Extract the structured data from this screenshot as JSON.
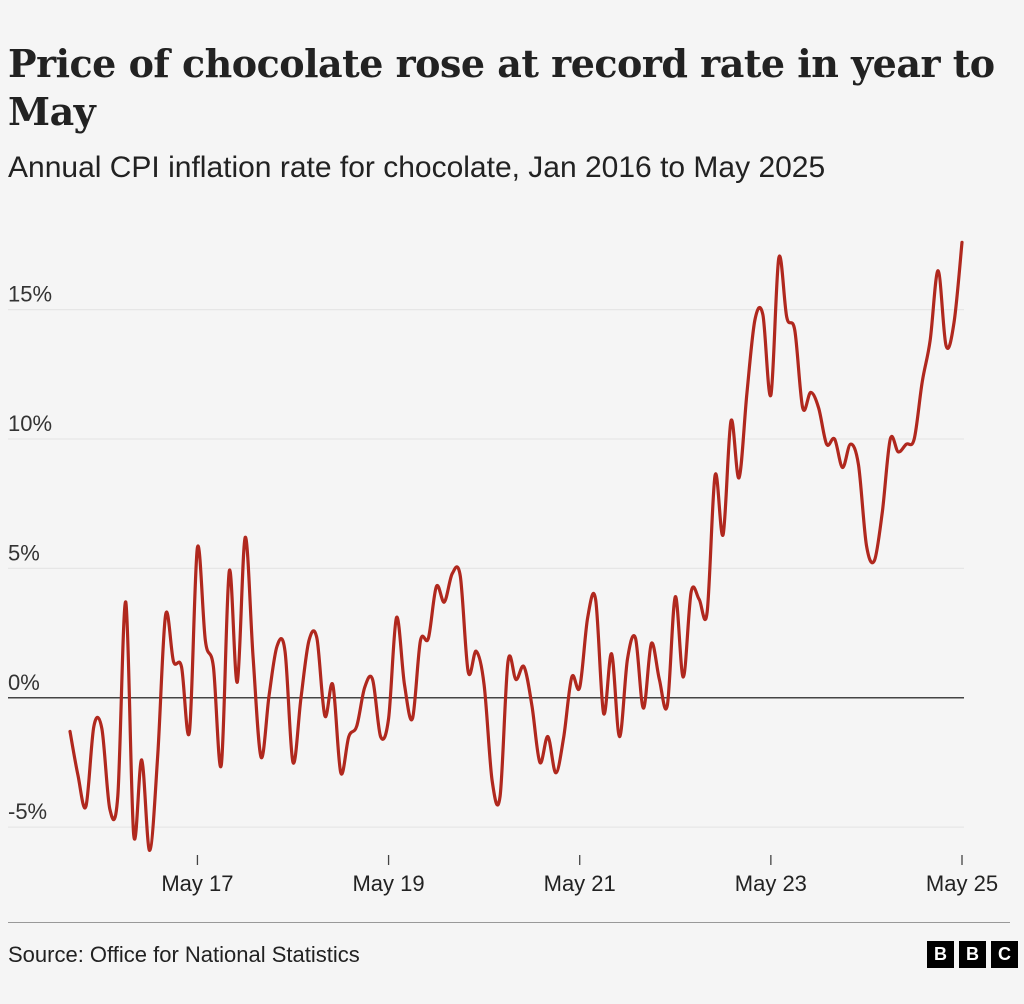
{
  "title": "Price of chocolate rose at record rate in year to May",
  "subtitle": "Annual CPI inflation rate for chocolate, Jan 2016 to May 2025",
  "source": "Source: Office for National Statistics",
  "logo": [
    "B",
    "B",
    "C"
  ],
  "colors": {
    "line": "#b0281e",
    "grid": "#e6e6e6",
    "zero": "#444444",
    "background": "#f5f5f5"
  },
  "chart_data": {
    "type": "line",
    "title": "Price of chocolate rose at record rate in year to May",
    "subtitle": "Annual CPI inflation rate for chocolate, Jan 2016 to May 2025",
    "xlabel": "",
    "ylabel": "",
    "ylim": [
      -6,
      18
    ],
    "y_ticks": [
      -5,
      0,
      5,
      10,
      15
    ],
    "y_tick_labels": [
      "-5%",
      "0%",
      "5%",
      "10%",
      "15%"
    ],
    "x_ticks": [
      "2017-05",
      "2019-05",
      "2021-05",
      "2023-05",
      "2025-05"
    ],
    "x_tick_labels": [
      "May 17",
      "May 19",
      "May 21",
      "May 23",
      "May 25"
    ],
    "grid": true,
    "series": [
      {
        "x": [
          "2016-01",
          "2016-02",
          "2016-03",
          "2016-04",
          "2016-05",
          "2016-06",
          "2016-07",
          "2016-08",
          "2016-09",
          "2016-10",
          "2016-11",
          "2016-12",
          "2017-01",
          "2017-02",
          "2017-03",
          "2017-04",
          "2017-05",
          "2017-06",
          "2017-07",
          "2017-08",
          "2017-09",
          "2017-10",
          "2017-11",
          "2017-12",
          "2018-01",
          "2018-02",
          "2018-03",
          "2018-04",
          "2018-05",
          "2018-06",
          "2018-07",
          "2018-08",
          "2018-09",
          "2018-10",
          "2018-11",
          "2018-12",
          "2019-01",
          "2019-02",
          "2019-03",
          "2019-04",
          "2019-05",
          "2019-06",
          "2019-07",
          "2019-08",
          "2019-09",
          "2019-10",
          "2019-11",
          "2019-12",
          "2020-01",
          "2020-02",
          "2020-03",
          "2020-04",
          "2020-05",
          "2020-06",
          "2020-07",
          "2020-08",
          "2020-09",
          "2020-10",
          "2020-11",
          "2020-12",
          "2021-01",
          "2021-02",
          "2021-03",
          "2021-04",
          "2021-05",
          "2021-06",
          "2021-07",
          "2021-08",
          "2021-09",
          "2021-10",
          "2021-11",
          "2021-12",
          "2022-01",
          "2022-02",
          "2022-03",
          "2022-04",
          "2022-05",
          "2022-06",
          "2022-07",
          "2022-08",
          "2022-09",
          "2022-10",
          "2022-11",
          "2022-12",
          "2023-01",
          "2023-02",
          "2023-03",
          "2023-04",
          "2023-05",
          "2023-06",
          "2023-07",
          "2023-08",
          "2023-09",
          "2023-10",
          "2023-11",
          "2023-12",
          "2024-01",
          "2024-02",
          "2024-03",
          "2024-04",
          "2024-05",
          "2024-06",
          "2024-07",
          "2024-08",
          "2024-09",
          "2024-10",
          "2024-11",
          "2024-12",
          "2025-01",
          "2025-02",
          "2025-03",
          "2025-04",
          "2025-05"
        ],
        "values": [
          -1.3,
          -3.0,
          -4.2,
          -1.1,
          -1.2,
          -4.3,
          -3.8,
          3.7,
          -5.3,
          -2.4,
          -5.9,
          -2.3,
          3.2,
          1.4,
          1.2,
          -1.3,
          5.8,
          2.2,
          1.2,
          -2.6,
          4.9,
          0.6,
          6.2,
          1.5,
          -2.3,
          0.1,
          2.0,
          1.8,
          -2.5,
          0.0,
          2.2,
          2.3,
          -0.7,
          0.5,
          -2.9,
          -1.5,
          -1.1,
          0.4,
          0.7,
          -1.5,
          -0.8,
          3.1,
          0.5,
          -0.8,
          2.2,
          2.3,
          4.3,
          3.7,
          4.8,
          4.7,
          1.0,
          1.8,
          0.5,
          -3.2,
          -3.8,
          1.4,
          0.7,
          1.2,
          -0.3,
          -2.5,
          -1.5,
          -2.9,
          -1.5,
          0.8,
          0.4,
          3.1,
          3.8,
          -0.6,
          1.7,
          -1.5,
          1.5,
          2.3,
          -0.4,
          2.1,
          0.7,
          -0.3,
          3.9,
          0.8,
          4.1,
          3.8,
          3.3,
          8.6,
          6.3,
          10.7,
          8.5,
          11.8,
          14.6,
          14.8,
          11.7,
          17.0,
          14.7,
          14.2,
          11.2,
          11.8,
          11.2,
          9.8,
          10.0,
          8.9,
          9.8,
          9.0,
          5.9,
          5.3,
          7.2,
          10.0,
          9.5,
          9.8,
          10.0,
          12.2,
          13.8,
          16.5,
          13.6,
          14.5,
          17.6
        ]
      }
    ]
  }
}
